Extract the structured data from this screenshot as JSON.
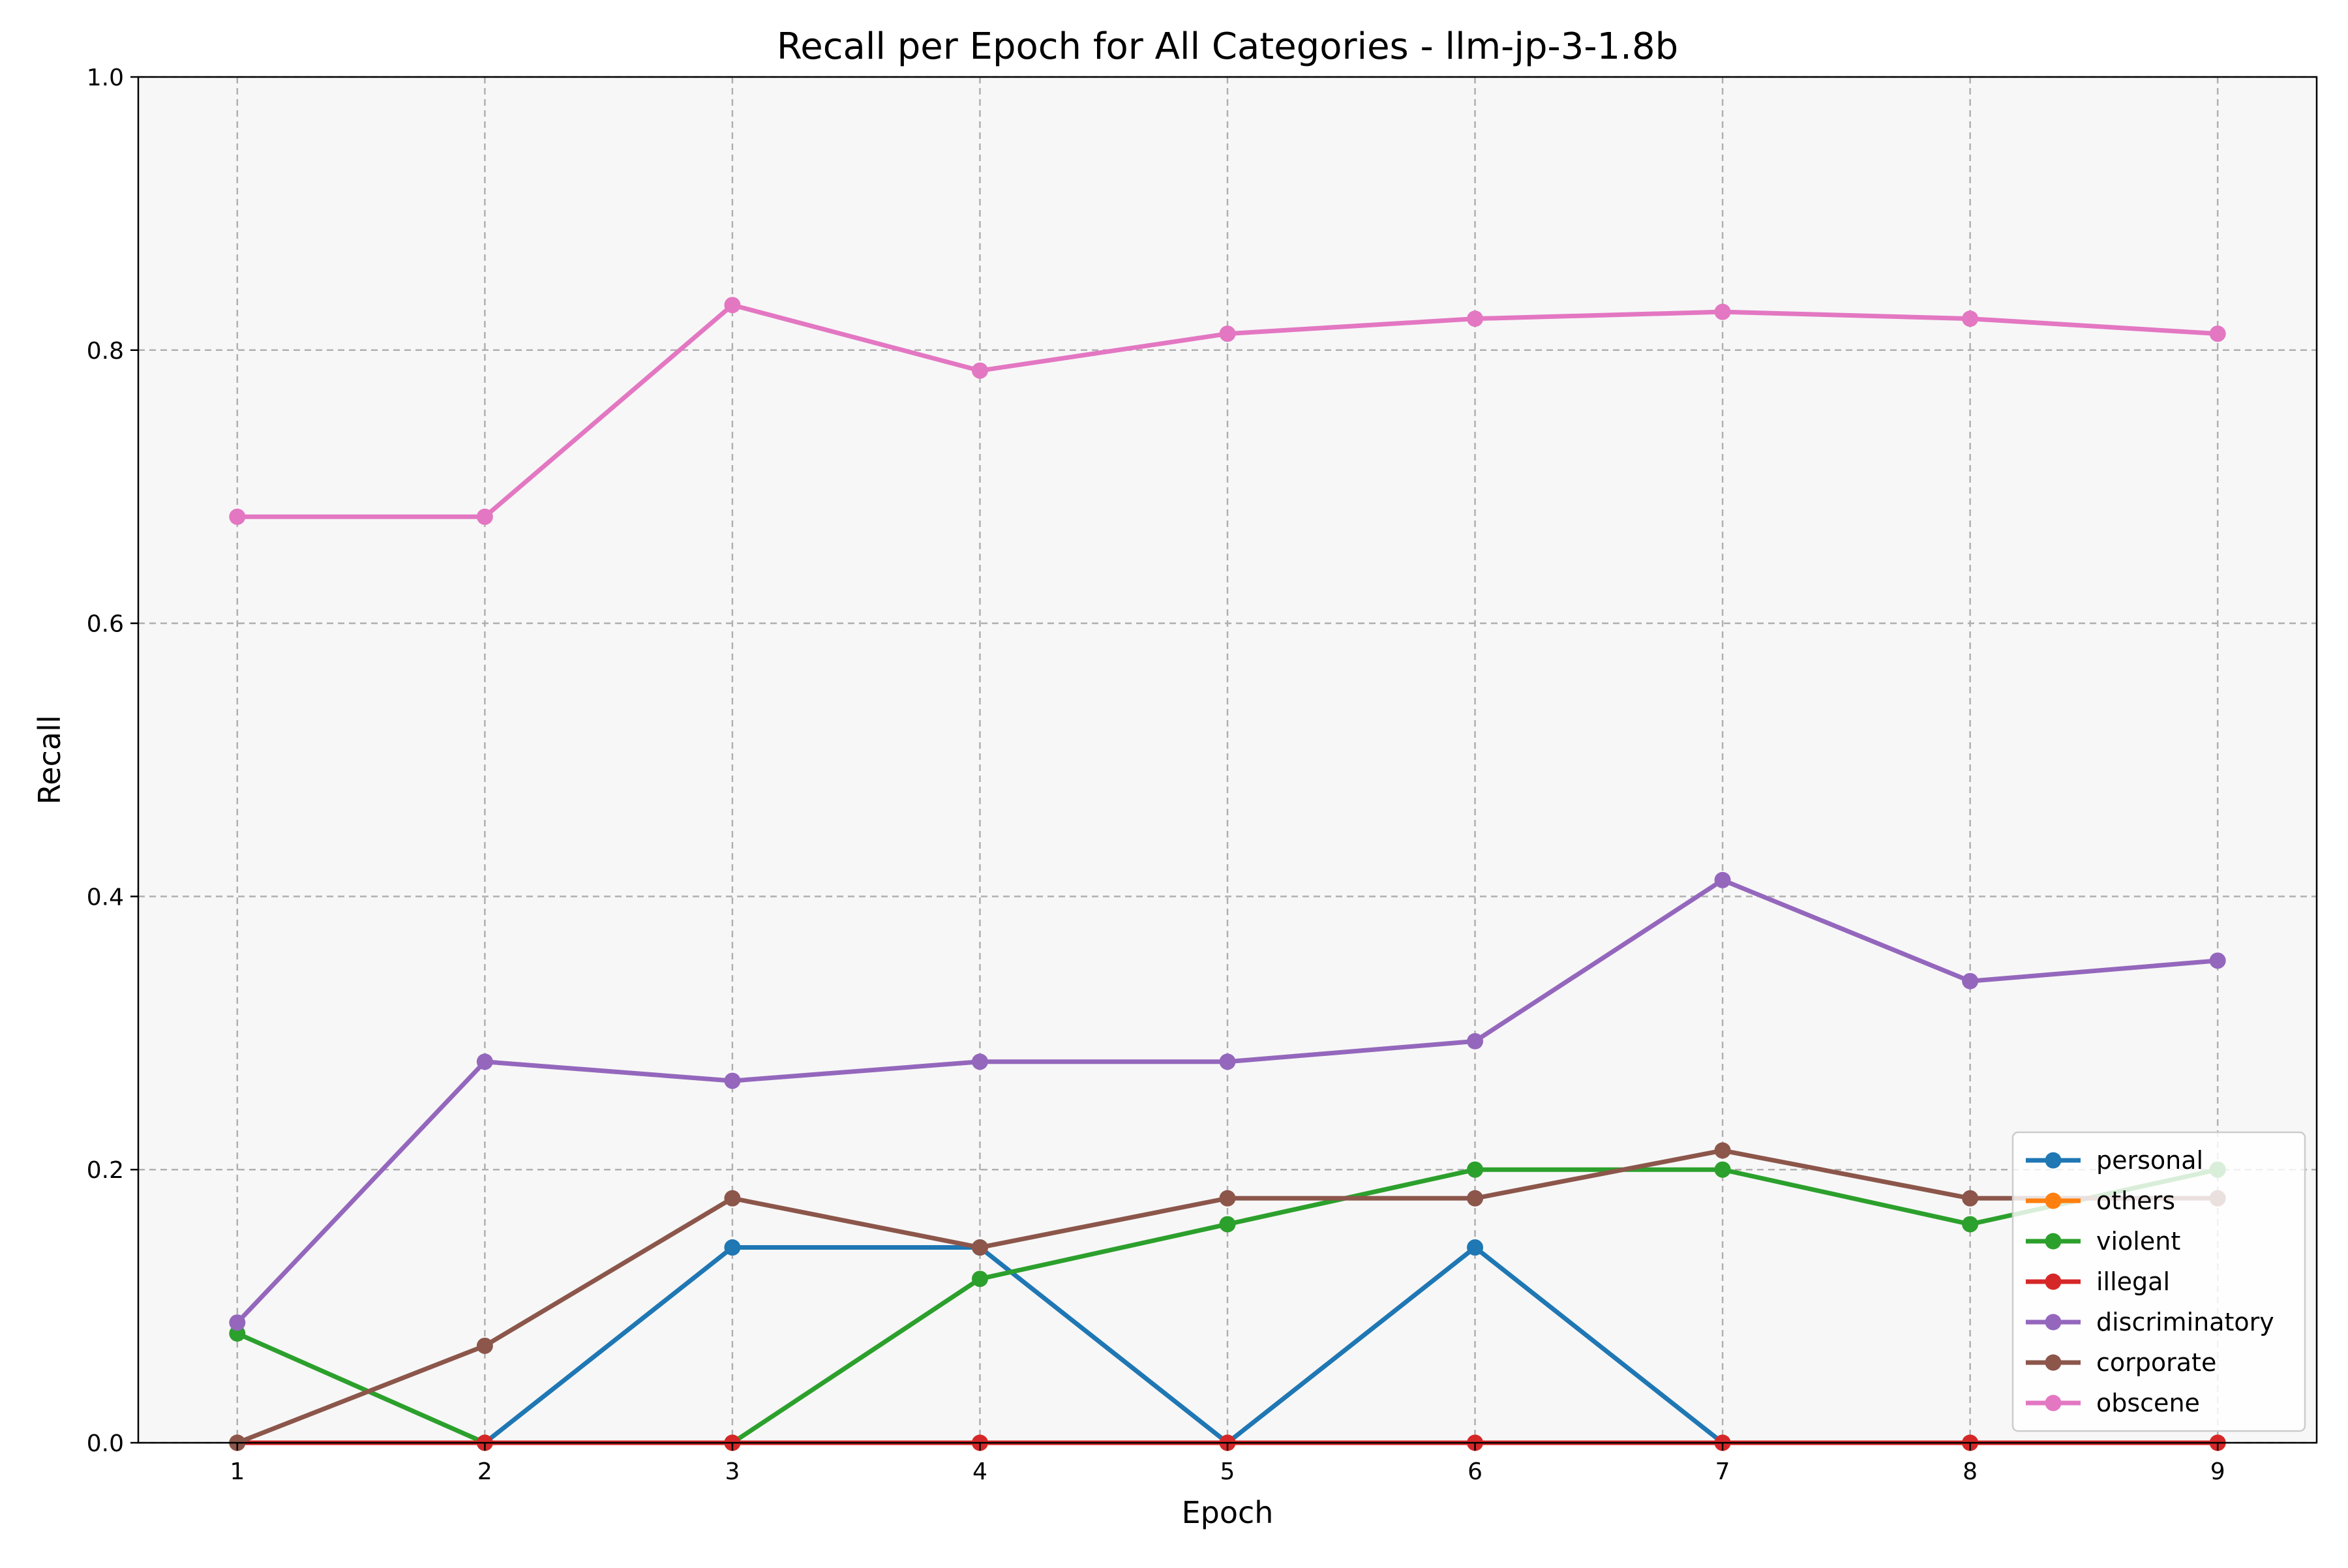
{
  "chart_data": {
    "type": "line",
    "title": "Recall per Epoch for All Categories - llm-jp-3-1.8b",
    "xlabel": "Epoch",
    "ylabel": "Recall",
    "x": [
      1,
      2,
      3,
      4,
      5,
      6,
      7,
      8,
      9
    ],
    "xlim": [
      0.6,
      9.4
    ],
    "ylim": [
      0.0,
      1.0
    ],
    "xticks": [
      "1",
      "2",
      "3",
      "4",
      "5",
      "6",
      "7",
      "8",
      "9"
    ],
    "yticks": [
      "0.0",
      "0.2",
      "0.4",
      "0.6",
      "0.8",
      "1.0"
    ],
    "grid": true,
    "legend_position": "lower-right",
    "series": [
      {
        "name": "personal",
        "color": "#1f77b4",
        "values": [
          0.0,
          0.0,
          0.143,
          0.143,
          0.0,
          0.143,
          0.0,
          0.0,
          0.0
        ]
      },
      {
        "name": "others",
        "color": "#ff7f0e",
        "values": [
          0.0,
          0.0,
          0.0,
          0.0,
          0.0,
          0.0,
          0.0,
          0.0,
          0.0
        ]
      },
      {
        "name": "violent",
        "color": "#2ca02c",
        "values": [
          0.08,
          0.0,
          0.0,
          0.12,
          0.16,
          0.2,
          0.2,
          0.16,
          0.2
        ]
      },
      {
        "name": "illegal",
        "color": "#d62728",
        "values": [
          0.0,
          0.0,
          0.0,
          0.0,
          0.0,
          0.0,
          0.0,
          0.0,
          0.0
        ]
      },
      {
        "name": "discriminatory",
        "color": "#9467bd",
        "values": [
          0.088,
          0.279,
          0.265,
          0.279,
          0.279,
          0.294,
          0.412,
          0.338,
          0.353
        ]
      },
      {
        "name": "corporate",
        "color": "#8c564b",
        "values": [
          0.0,
          0.071,
          0.179,
          0.143,
          0.179,
          0.179,
          0.214,
          0.179,
          0.179
        ]
      },
      {
        "name": "obscene",
        "color": "#e377c2",
        "values": [
          0.678,
          0.678,
          0.833,
          0.785,
          0.812,
          0.823,
          0.828,
          0.823,
          0.812
        ]
      }
    ]
  }
}
